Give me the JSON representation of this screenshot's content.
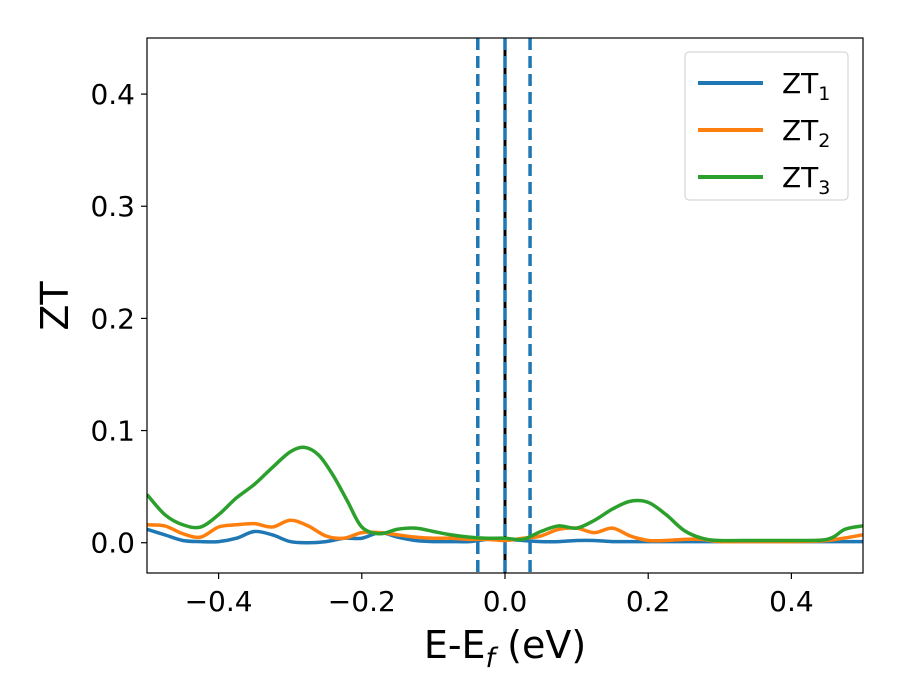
{
  "chart_data": {
    "type": "line",
    "xlabel": "E-E",
    "xlabel_sub": "f",
    "xlabel_unit": " (eV)",
    "ylabel": "ZT",
    "xlim": [
      -0.5,
      0.5
    ],
    "ylim": [
      -0.027,
      0.45
    ],
    "xticks": [
      -0.4,
      -0.2,
      0.0,
      0.2,
      0.4
    ],
    "xtick_labels": [
      "−0.4",
      "−0.2",
      "0.0",
      "0.2",
      "0.4"
    ],
    "yticks": [
      0.0,
      0.1,
      0.2,
      0.3,
      0.4
    ],
    "ytick_labels": [
      "0.0",
      "0.1",
      "0.2",
      "0.3",
      "0.4"
    ],
    "grid": false,
    "legend_position": "top-right",
    "vlines": [
      {
        "x": -0.038,
        "style": "dashed",
        "color": "#1f77b4"
      },
      {
        "x": 0.0,
        "style": "solid",
        "color": "#000000"
      },
      {
        "x": 0.0,
        "style": "dashed",
        "color": "#1f77b4"
      },
      {
        "x": 0.035,
        "style": "dashed",
        "color": "#1f77b4"
      }
    ],
    "series": [
      {
        "name": "ZT",
        "subscript": "1",
        "color": "#1f77b4",
        "x": [
          -0.5,
          -0.475,
          -0.45,
          -0.425,
          -0.4,
          -0.375,
          -0.35,
          -0.325,
          -0.3,
          -0.275,
          -0.25,
          -0.225,
          -0.2,
          -0.175,
          -0.15,
          -0.125,
          -0.1,
          -0.075,
          -0.05,
          -0.025,
          0.0,
          0.025,
          0.05,
          0.075,
          0.1,
          0.125,
          0.15,
          0.175,
          0.2,
          0.25,
          0.3,
          0.35,
          0.4,
          0.45,
          0.5
        ],
        "values": [
          0.012,
          0.007,
          0.002,
          0.001,
          0.001,
          0.004,
          0.01,
          0.007,
          0.001,
          0.0,
          0.001,
          0.004,
          0.004,
          0.009,
          0.005,
          0.002,
          0.001,
          0.001,
          0.001,
          0.003,
          0.003,
          0.002,
          0.001,
          0.001,
          0.002,
          0.002,
          0.001,
          0.001,
          0.001,
          0.001,
          0.001,
          0.001,
          0.001,
          0.001,
          0.001
        ]
      },
      {
        "name": "ZT",
        "subscript": "2",
        "color": "#ff7f0e",
        "x": [
          -0.5,
          -0.475,
          -0.45,
          -0.425,
          -0.4,
          -0.375,
          -0.35,
          -0.325,
          -0.3,
          -0.275,
          -0.25,
          -0.225,
          -0.2,
          -0.175,
          -0.15,
          -0.125,
          -0.1,
          -0.075,
          -0.05,
          -0.025,
          0.0,
          0.025,
          0.05,
          0.075,
          0.1,
          0.125,
          0.15,
          0.175,
          0.2,
          0.225,
          0.25,
          0.275,
          0.3,
          0.35,
          0.4,
          0.45,
          0.5
        ],
        "values": [
          0.016,
          0.015,
          0.008,
          0.005,
          0.014,
          0.016,
          0.017,
          0.014,
          0.02,
          0.015,
          0.006,
          0.004,
          0.009,
          0.009,
          0.007,
          0.005,
          0.004,
          0.004,
          0.003,
          0.003,
          0.002,
          0.004,
          0.006,
          0.012,
          0.013,
          0.009,
          0.013,
          0.006,
          0.002,
          0.002,
          0.003,
          0.003,
          0.001,
          0.001,
          0.001,
          0.002,
          0.007
        ]
      },
      {
        "name": "ZT",
        "subscript": "3",
        "color": "#2ca02c",
        "x": [
          -0.5,
          -0.475,
          -0.45,
          -0.425,
          -0.4,
          -0.375,
          -0.35,
          -0.325,
          -0.3,
          -0.28,
          -0.26,
          -0.24,
          -0.22,
          -0.2,
          -0.175,
          -0.15,
          -0.125,
          -0.1,
          -0.075,
          -0.05,
          -0.025,
          0.0,
          0.025,
          0.05,
          0.075,
          0.1,
          0.125,
          0.15,
          0.175,
          0.2,
          0.225,
          0.25,
          0.275,
          0.3,
          0.35,
          0.4,
          0.45,
          0.475,
          0.5
        ],
        "values": [
          0.043,
          0.025,
          0.016,
          0.014,
          0.025,
          0.04,
          0.052,
          0.067,
          0.081,
          0.085,
          0.078,
          0.06,
          0.037,
          0.014,
          0.008,
          0.012,
          0.013,
          0.01,
          0.007,
          0.005,
          0.004,
          0.004,
          0.003,
          0.01,
          0.015,
          0.013,
          0.02,
          0.03,
          0.037,
          0.036,
          0.025,
          0.011,
          0.004,
          0.002,
          0.002,
          0.002,
          0.003,
          0.012,
          0.015
        ]
      }
    ]
  }
}
